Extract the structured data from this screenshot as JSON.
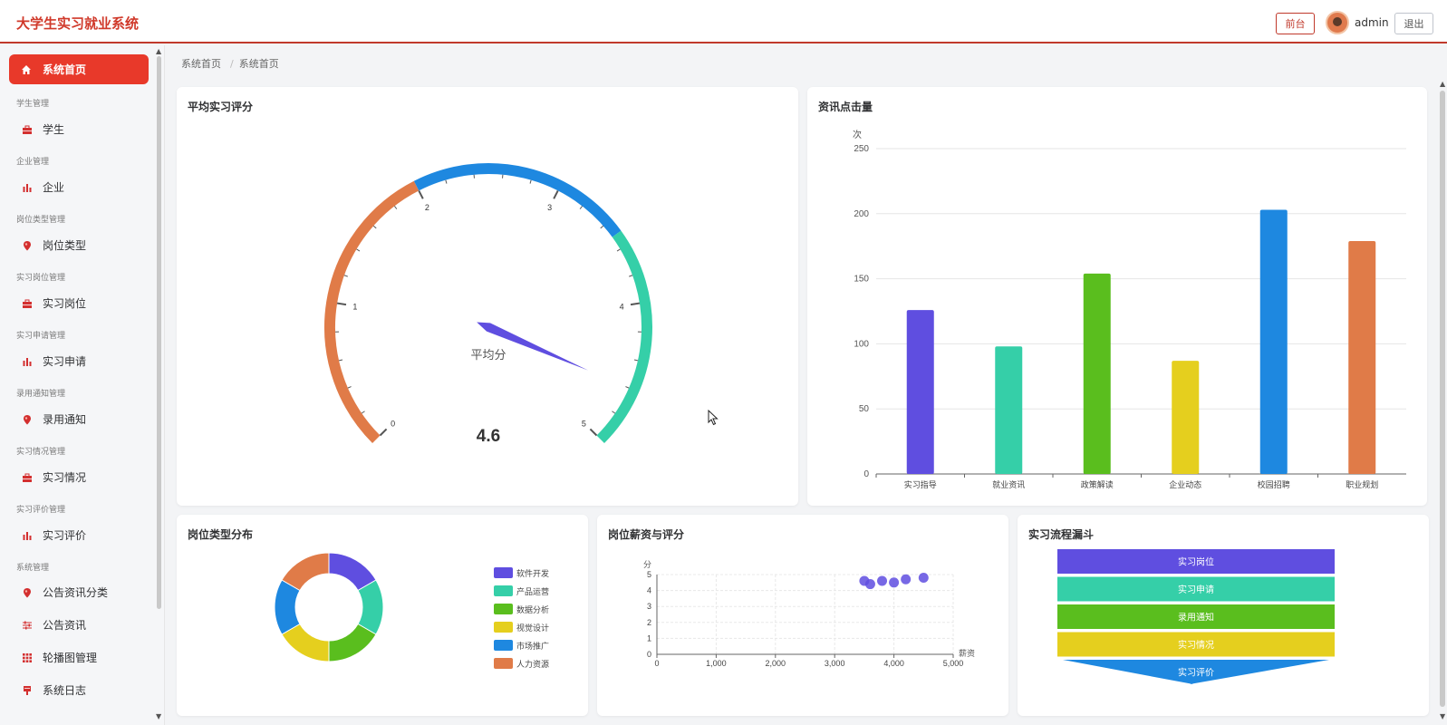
{
  "app": {
    "title": "大学生实习就业系统"
  },
  "header": {
    "front_label": "前台",
    "username": "admin",
    "logout_label": "退出"
  },
  "sidebar": {
    "active": {
      "label": "系统首页",
      "icon": "home-icon"
    },
    "groups": [
      {
        "title": "学生管理",
        "item": "学生",
        "icon": "briefcase-icon"
      },
      {
        "title": "企业管理",
        "item": "企业",
        "icon": "bar-chart-icon"
      },
      {
        "title": "岗位类型管理",
        "item": "岗位类型",
        "icon": "location-pin-icon"
      },
      {
        "title": "实习岗位管理",
        "item": "实习岗位",
        "icon": "briefcase-icon"
      },
      {
        "title": "实习申请管理",
        "item": "实习申请",
        "icon": "bar-chart-icon"
      },
      {
        "title": "录用通知管理",
        "item": "录用通知",
        "icon": "location-pin-icon"
      },
      {
        "title": "实习情况管理",
        "item": "实习情况",
        "icon": "briefcase-icon"
      },
      {
        "title": "实习评价管理",
        "item": "实习评价",
        "icon": "bar-chart-icon"
      }
    ],
    "system_group": {
      "title": "系统管理",
      "items": [
        {
          "label": "公告资讯分类",
          "icon": "location-pin-icon"
        },
        {
          "label": "公告资讯",
          "icon": "sliders-icon"
        },
        {
          "label": "轮播图管理",
          "icon": "grid-icon"
        },
        {
          "label": "系统日志",
          "icon": "log-icon"
        }
      ]
    }
  },
  "breadcrumb": {
    "items": [
      "系统首页",
      "系统首页"
    ],
    "separator": "/"
  },
  "cards": {
    "gauge": {
      "title": "平均实习评分"
    },
    "clicks": {
      "title": "资讯点击量"
    },
    "pie": {
      "title": "岗位类型分布"
    },
    "scatter": {
      "title": "岗位薪资与评分"
    },
    "funnel": {
      "title": "实习流程漏斗"
    }
  },
  "colors": {
    "accent": "#e8392a",
    "purple": "#5f4ee0",
    "teal": "#35cfa8",
    "green": "#5abe1e",
    "yellow": "#e5cf1e",
    "blue": "#1e88e0",
    "orange": "#e07b48"
  },
  "chart_data": [
    {
      "type": "gauge",
      "title": "平均实习评分",
      "label": "平均分",
      "value": 4.6,
      "value_text": "4.6",
      "min": 0,
      "max": 5,
      "ticks": [
        "0",
        "1",
        "2",
        "3",
        "4",
        "5"
      ],
      "bands": [
        {
          "to": 2,
          "color": "#e07b48"
        },
        {
          "to": 3.5,
          "color": "#1e88e0"
        },
        {
          "to": 5,
          "color": "#35cfa8"
        }
      ]
    },
    {
      "type": "bar",
      "title": "资讯点击量",
      "ylabel": "次",
      "ylim": [
        0,
        250
      ],
      "yticks": [
        "0",
        "50",
        "100",
        "150",
        "200",
        "250"
      ],
      "categories": [
        "实习指导",
        "就业资讯",
        "政策解读",
        "企业动态",
        "校园招聘",
        "职业规划"
      ],
      "values": [
        126,
        98,
        154,
        87,
        203,
        179
      ],
      "colors": [
        "#5f4ee0",
        "#35cfa8",
        "#5abe1e",
        "#e5cf1e",
        "#1e88e0",
        "#e07b48"
      ]
    },
    {
      "type": "pie",
      "title": "岗位类型分布",
      "legend": "right",
      "slices": [
        {
          "name": "软件开发",
          "value": 1,
          "color": "#5f4ee0"
        },
        {
          "name": "产品运营",
          "value": 1,
          "color": "#35cfa8"
        },
        {
          "name": "数据分析",
          "value": 1,
          "color": "#5abe1e"
        },
        {
          "name": "视觉设计",
          "value": 1,
          "color": "#e5cf1e"
        },
        {
          "name": "市场推广",
          "value": 1,
          "color": "#1e88e0"
        },
        {
          "name": "人力资源",
          "value": 1,
          "color": "#e07b48"
        }
      ]
    },
    {
      "type": "scatter",
      "title": "岗位薪资与评分",
      "xlabel": "薪资",
      "ylabel": "分",
      "xlim": [
        0,
        5000
      ],
      "ylim": [
        0,
        5
      ],
      "xticks": [
        "0",
        "1,000",
        "2,000",
        "3,000",
        "4,000",
        "5,000"
      ],
      "yticks": [
        "0",
        "1",
        "2",
        "3",
        "4",
        "5"
      ],
      "points": [
        [
          3500,
          4.6
        ],
        [
          3600,
          4.4
        ],
        [
          3800,
          4.6
        ],
        [
          4000,
          4.5
        ],
        [
          4200,
          4.7
        ],
        [
          4500,
          4.8
        ]
      ],
      "color": "#5f4ee0"
    },
    {
      "type": "funnel",
      "title": "实习流程漏斗",
      "stages": [
        {
          "name": "实习岗位",
          "color": "#5f4ee0"
        },
        {
          "name": "实习申请",
          "color": "#35cfa8"
        },
        {
          "name": "录用通知",
          "color": "#5abe1e"
        },
        {
          "name": "实习情况",
          "color": "#e5cf1e"
        },
        {
          "name": "实习评价",
          "color": "#1e88e0"
        }
      ]
    }
  ]
}
